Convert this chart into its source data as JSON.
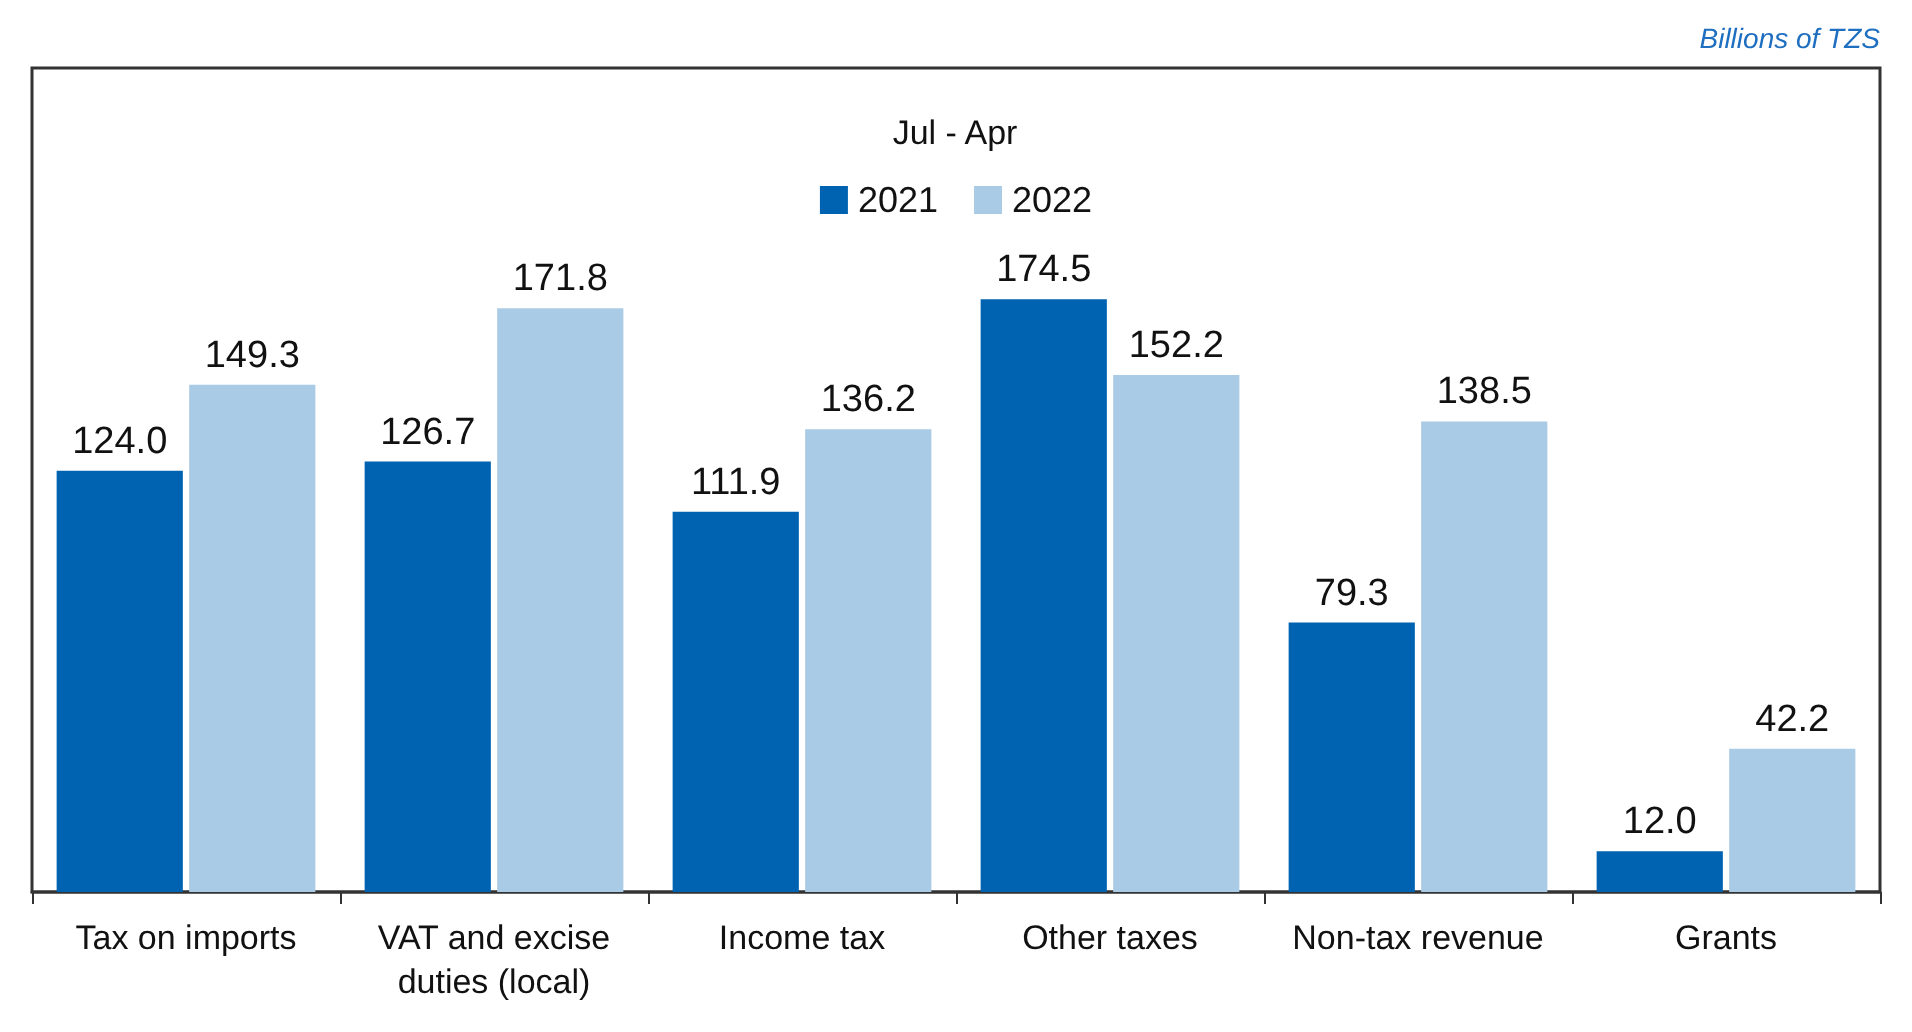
{
  "chart_data": {
    "type": "bar",
    "legend_title": "Jul - Apr",
    "annotations": [
      "Billions of TZS"
    ],
    "categories": [
      "Tax on imports",
      "VAT and excise duties (local)",
      "Income tax",
      "Other taxes",
      "Non-tax revenue",
      "Grants"
    ],
    "series": [
      {
        "name": "2021",
        "color": "#0063b1",
        "values": [
          124.0,
          126.7,
          111.9,
          174.5,
          79.3,
          12.0
        ],
        "value_labels": [
          "124.0",
          "126.7",
          "111.9",
          "174.5",
          "79.3",
          "12.0"
        ]
      },
      {
        "name": "2022",
        "color": "#a9cbe6",
        "values": [
          149.3,
          171.8,
          136.2,
          152.2,
          138.5,
          42.2
        ],
        "value_labels": [
          "149.3",
          "171.8",
          "136.2",
          "152.2",
          "138.5",
          "42.2"
        ]
      }
    ],
    "legend": "top",
    "grid": false
  }
}
